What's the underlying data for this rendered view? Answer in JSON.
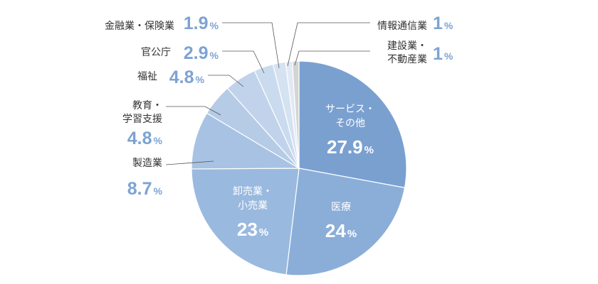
{
  "chart_data": {
    "type": "pie",
    "title": "",
    "start": "12 o'clock, clockwise",
    "slices": [
      {
        "label": "サービス・その他",
        "lines": [
          "サービス・",
          "その他"
        ],
        "num": "27.9",
        "unit": "%",
        "value": 27.9,
        "color": "#7aa0d0",
        "placement": "inside"
      },
      {
        "label": "医療",
        "lines": [
          "医療"
        ],
        "num": "24",
        "unit": "%",
        "value": 24,
        "color": "#8aaed8",
        "placement": "inside"
      },
      {
        "label": "卸売業・小売業",
        "lines": [
          "卸売業・",
          "小売業"
        ],
        "num": "23",
        "unit": "%",
        "value": 23,
        "color": "#9ab9df",
        "placement": "inside"
      },
      {
        "label": "製造業",
        "lines": [
          "製造業"
        ],
        "num": "8.7",
        "unit": "%",
        "value": 8.7,
        "color": "#a8c2e3",
        "placement": "outside"
      },
      {
        "label": "教育・学習支援",
        "lines": [
          "教育・",
          "学習支援"
        ],
        "num": "4.8",
        "unit": "%",
        "value": 4.8,
        "color": "#b5cbe6",
        "placement": "outside"
      },
      {
        "label": "福祉",
        "lines": [
          "福祉"
        ],
        "num": "4.8",
        "unit": "%",
        "value": 4.8,
        "color": "#c0d3ea",
        "placement": "outside"
      },
      {
        "label": "官公庁",
        "lines": [
          "官公庁"
        ],
        "num": "2.9",
        "unit": "%",
        "value": 2.9,
        "color": "#cadbef",
        "placement": "outside"
      },
      {
        "label": "金融業・保険業",
        "lines": [
          "金融業・保険業"
        ],
        "num": "1.9",
        "unit": "%",
        "value": 1.9,
        "color": "#d5e2f2",
        "placement": "outside"
      },
      {
        "label": "情報通信業",
        "lines": [
          "情報通信業"
        ],
        "num": "1",
        "unit": "%",
        "value": 1,
        "color": "#e1e9f5",
        "placement": "outside"
      },
      {
        "label": "建設業・不動産業",
        "lines": [
          "建設業・",
          "不動産業"
        ],
        "num": "1",
        "unit": "%",
        "value": 1,
        "color": "#d4d4d4",
        "placement": "outside"
      }
    ],
    "label_color": "#333333",
    "value_color": "#7da3d3",
    "inner_text_color": "#ffffff"
  }
}
